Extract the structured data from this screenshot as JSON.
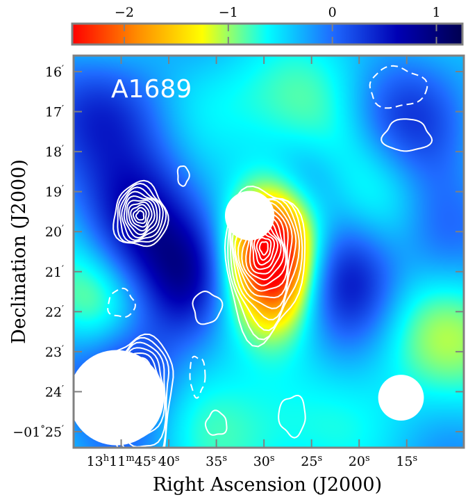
{
  "chart_data": {
    "type": "heatmap",
    "title": "",
    "annotation": "A1689",
    "colorbar": {
      "position": "top",
      "range": [
        -2.5,
        1.25
      ],
      "ticks": [
        -2,
        -1,
        0,
        1
      ],
      "tick_labels": [
        "−2",
        "−1",
        "0",
        "1"
      ],
      "colors": [
        "#ff0000",
        "#ff8c00",
        "#ffff00",
        "#00ffff",
        "#1f6bff",
        "#0000b4",
        "#000050"
      ]
    },
    "xlabel": "Right Ascension (J2000)",
    "ylabel": "Declination (J2000)",
    "x_ticks": [
      {
        "value": 45,
        "hours": "13",
        "minutes": "11",
        "seconds": "45"
      },
      {
        "value": 40,
        "seconds": "40"
      },
      {
        "value": 35,
        "seconds": "35"
      },
      {
        "value": 30,
        "seconds": "30"
      },
      {
        "value": 25,
        "seconds": "25"
      },
      {
        "value": 20,
        "seconds": "20"
      },
      {
        "value": 15,
        "seconds": "15"
      }
    ],
    "xlim": [
      50,
      9
    ],
    "y_ticks": [
      {
        "value": 16,
        "label": "16"
      },
      {
        "value": 17,
        "label": "17"
      },
      {
        "value": 18,
        "label": "18"
      },
      {
        "value": 19,
        "label": "19"
      },
      {
        "value": 20,
        "label": "20"
      },
      {
        "value": 21,
        "label": "21"
      },
      {
        "value": 22,
        "label": "22"
      },
      {
        "value": 23,
        "label": "23"
      },
      {
        "value": 24,
        "label": "24"
      },
      {
        "value": 25,
        "label": "25",
        "degrees": "−01"
      }
    ],
    "ylim": [
      15.6,
      25.4
    ],
    "blobs": [
      {
        "ra": 43,
        "dec": 19.6,
        "value": 1.1,
        "sra": 4.5,
        "sdec": 1.4
      },
      {
        "ra": 44,
        "dec": 23.6,
        "value": 1.0,
        "sra": 4.0,
        "sdec": 1.2
      },
      {
        "ra": 21,
        "dec": 21.2,
        "value": 0.9,
        "sra": 4.0,
        "sdec": 1.1
      },
      {
        "ra": 46,
        "dec": 16.8,
        "value": 0.6,
        "sra": 5.0,
        "sdec": 1.0
      },
      {
        "ra": 16,
        "dec": 17.3,
        "value": 0.6,
        "sra": 5.0,
        "sdec": 1.0
      },
      {
        "ra": 12,
        "dec": 20.0,
        "value": 0.4,
        "sra": 3.0,
        "sdec": 1.3
      },
      {
        "ra": 38,
        "dec": 21.2,
        "value": 0.7,
        "sra": 3.0,
        "sdec": 1.0
      },
      {
        "ra": 26,
        "dec": 18.7,
        "value": 0.5,
        "sra": 3.5,
        "sdec": 0.8
      },
      {
        "ra": 29,
        "dec": 20.5,
        "value": -2.6,
        "sra": 3.0,
        "sdec": 1.2
      },
      {
        "ra": 22,
        "dec": 18.0,
        "value": -0.6,
        "sra": 5.0,
        "sdec": 1.3
      },
      {
        "ra": 47,
        "dec": 21.8,
        "value": -0.8,
        "sra": 4.0,
        "sdec": 1.0
      },
      {
        "ra": 13,
        "dec": 22.4,
        "value": -0.7,
        "sra": 5.0,
        "sdec": 1.2
      },
      {
        "ra": 33,
        "dec": 24.7,
        "value": -0.6,
        "sra": 6.0,
        "sdec": 1.1
      },
      {
        "ra": 36,
        "dec": 16.5,
        "value": -0.4,
        "sra": 6.0,
        "sdec": 1.0
      }
    ],
    "masks": [
      {
        "ra": 31.5,
        "dec": 19.6,
        "r_ra": 2.6
      },
      {
        "ra": 45.5,
        "dec": 24.15,
        "r_ra": 5.0
      },
      {
        "ra": 15.6,
        "dec": 24.15,
        "r_ra": 2.4
      }
    ],
    "contour_groups": [
      {
        "ra": 43,
        "dec": 19.6,
        "sra": 2.8,
        "sdec": 0.8,
        "levels": 10,
        "scale": 1.0,
        "stretch": 0.0
      },
      {
        "ra": 30,
        "dec": 20.4,
        "sra": 4.2,
        "sdec": 1.5,
        "levels": 14,
        "scale": 1.0,
        "stretch": 0.5
      },
      {
        "ra": 43,
        "dec": 23.8,
        "sra": 3.5,
        "sdec": 1.2,
        "levels": 10,
        "scale": 1.0,
        "stretch": 0.9
      },
      {
        "ra": 15,
        "dec": 17.6,
        "sra": 2.5,
        "sdec": 0.4,
        "levels": 1,
        "scale": 1.0,
        "stretch": 0.0
      },
      {
        "ra": 36,
        "dec": 21.9,
        "sra": 1.5,
        "sdec": 0.4,
        "levels": 1,
        "scale": 1.0,
        "stretch": 0.0
      },
      {
        "ra": 27,
        "dec": 24.6,
        "sra": 1.4,
        "sdec": 0.5,
        "levels": 1,
        "scale": 1.0,
        "stretch": 0.0
      },
      {
        "ra": 35,
        "dec": 24.8,
        "sra": 1.1,
        "sdec": 0.3,
        "levels": 1,
        "scale": 1.0,
        "stretch": 0.0
      },
      {
        "ra": 38.5,
        "dec": 18.6,
        "sra": 0.6,
        "sdec": 0.25,
        "levels": 1,
        "scale": 1.0,
        "stretch": 0.0
      }
    ],
    "dashed_contours": [
      {
        "ra": 45,
        "dec": 21.8,
        "sra": 1.4,
        "sdec": 0.35
      },
      {
        "ra": 16,
        "dec": 16.4,
        "sra": 3.0,
        "sdec": 0.5
      },
      {
        "ra": 37,
        "dec": 23.6,
        "sra": 0.8,
        "sdec": 0.5
      }
    ]
  }
}
